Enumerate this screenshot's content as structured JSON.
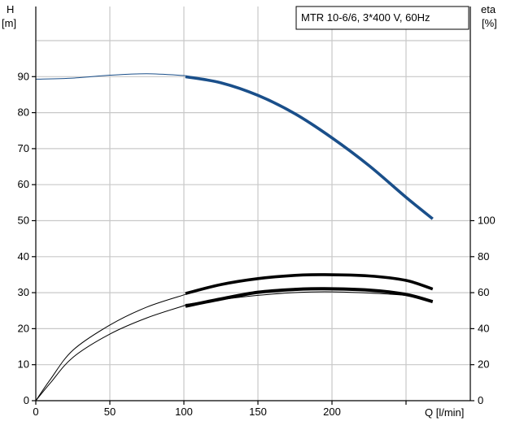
{
  "chart_data": {
    "type": "line",
    "title": "MTR 10-6/6, 3*400 V, 60Hz",
    "left_axis": {
      "label_top": "H",
      "label_unit": "[m]",
      "ylim": [
        0,
        100
      ],
      "ticks": [
        0,
        10,
        20,
        30,
        40,
        50,
        60,
        70,
        80,
        90
      ]
    },
    "right_axis": {
      "label_top": "eta",
      "label_unit": "[%]",
      "ylim": [
        0,
        200
      ],
      "ticks": [
        0,
        20,
        40,
        60,
        80,
        100
      ]
    },
    "x_axis": {
      "label": "Q [l/min]",
      "xlim": [
        0,
        290
      ],
      "ticks": [
        0,
        50,
        100,
        150,
        200
      ]
    },
    "grid": true,
    "series": [
      {
        "id": "head-thin",
        "axis": "left",
        "color": "#1a4f8a",
        "stroke": "thin",
        "x": [
          0,
          25,
          50,
          75,
          101
        ],
        "y": [
          89.3,
          89.6,
          90.4,
          90.8,
          90.3
        ]
      },
      {
        "id": "head-bold",
        "axis": "left",
        "color": "#1a4f8a",
        "stroke": "bold",
        "x": [
          101,
          125,
          150,
          175,
          200,
          225,
          250,
          268
        ],
        "y": [
          90.0,
          88.3,
          84.8,
          79.7,
          73.0,
          65.3,
          56.5,
          50.5
        ]
      },
      {
        "id": "eta-upper-thin",
        "axis": "right",
        "color": "#000000",
        "stroke": "thin",
        "x": [
          0,
          10,
          25,
          50,
          75,
          101
        ],
        "y": [
          0,
          12,
          28,
          42,
          52,
          59
        ]
      },
      {
        "id": "eta-upper-bold",
        "axis": "right",
        "color": "#000000",
        "stroke": "bold",
        "x": [
          101,
          125,
          150,
          175,
          195,
          225,
          250,
          268
        ],
        "y": [
          59.5,
          64.5,
          67.8,
          69.6,
          70.0,
          69.3,
          66.8,
          62.0
        ]
      },
      {
        "id": "eta-lower-thin",
        "axis": "right",
        "color": "#000000",
        "stroke": "thin",
        "x": [
          0,
          10,
          25,
          50,
          75,
          101
        ],
        "y": [
          0,
          10,
          24,
          37,
          46,
          53
        ]
      },
      {
        "id": "eta-lower-bold",
        "axis": "right",
        "color": "#000000",
        "stroke": "boldest",
        "x": [
          101,
          125,
          150,
          175,
          195,
          225,
          250,
          268
        ],
        "y": [
          52.5,
          56.5,
          60.2,
          61.8,
          62.2,
          61.4,
          59.0,
          55.0
        ]
      },
      {
        "id": "eta-thin-continuation",
        "axis": "right",
        "color": "#000000",
        "stroke": "thin",
        "x": [
          101,
          150,
          195,
          250,
          268
        ],
        "y": [
          53.5,
          58.5,
          60.5,
          58.5,
          55.5
        ]
      }
    ]
  }
}
